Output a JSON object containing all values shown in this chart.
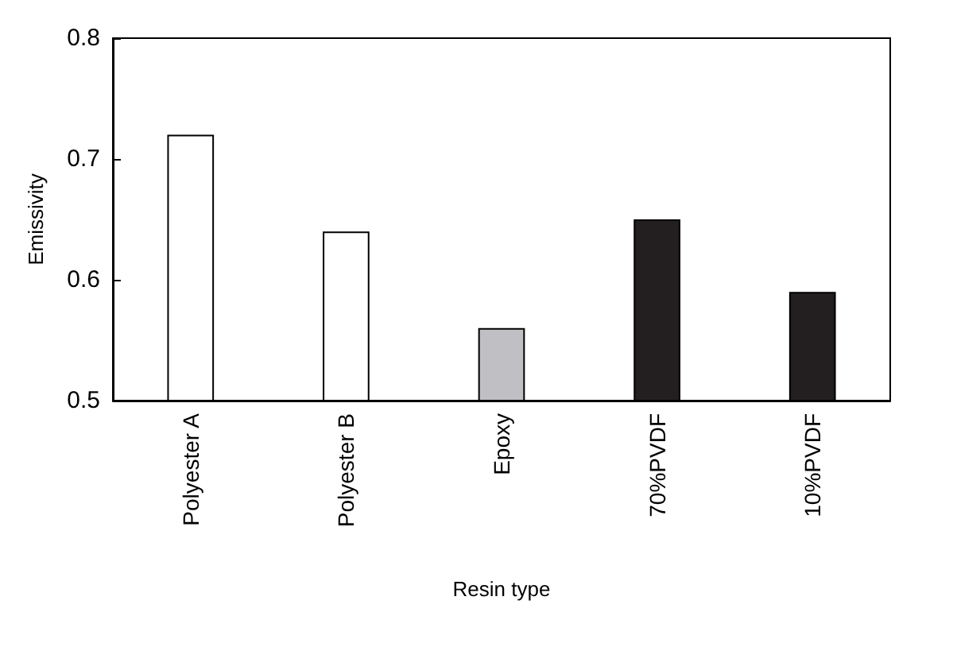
{
  "chart_data": {
    "type": "bar",
    "xlabel": "Resin type",
    "ylabel": "Emissivity",
    "categories": [
      "Polyester A",
      "Polyester B",
      "Epoxy",
      "70%PVDF",
      "10%PVDF"
    ],
    "values": [
      0.72,
      0.64,
      0.56,
      0.65,
      0.59
    ],
    "colors": [
      "#ffffff",
      "#ffffff",
      "#c0c0c4",
      "#231f20",
      "#231f20"
    ],
    "ylim": [
      0.5,
      0.8
    ],
    "yticks": [
      0.5,
      0.6,
      0.7,
      0.8
    ]
  }
}
